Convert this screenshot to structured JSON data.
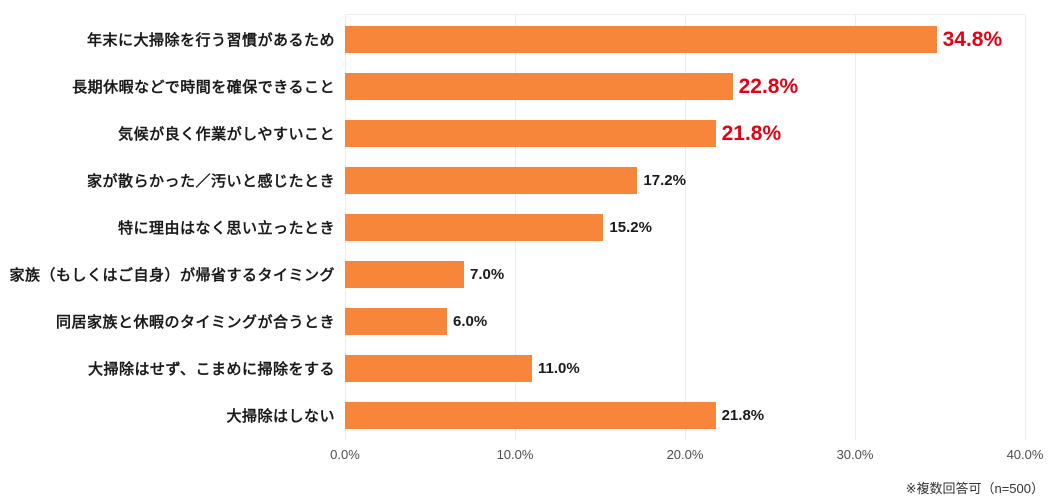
{
  "chart_data": {
    "type": "bar",
    "orientation": "horizontal",
    "title": "",
    "xlabel": "",
    "ylabel": "",
    "xlim": [
      0,
      40
    ],
    "grid": true,
    "categories": [
      "年末に大掃除を行う習慣があるため",
      "長期休暇などで時間を確保できること",
      "気候が良く作業がしやすいこと",
      "家が散らかった／汚いと感じたとき",
      "特に理由はなく思い立ったとき",
      "家族（もしくはご自身）が帰省するタイミング",
      "同居家族と休暇のタイミングが合うとき",
      "大掃除はせず、こまめに掃除をする",
      "大掃除はしない"
    ],
    "values": [
      34.8,
      22.8,
      21.8,
      17.2,
      15.2,
      7.0,
      6.0,
      11.0,
      21.8
    ],
    "value_labels": [
      "34.8%",
      "22.8%",
      "21.8%",
      "17.2%",
      "15.2%",
      "7.0%",
      "6.0%",
      "11.0%",
      "21.8%"
    ],
    "emphasized": [
      true,
      true,
      true,
      false,
      false,
      false,
      false,
      false,
      false
    ],
    "x_ticks": [
      {
        "value": 0,
        "label": "0.0%"
      },
      {
        "value": 10,
        "label": "10.0%"
      },
      {
        "value": 20,
        "label": "20.0%"
      },
      {
        "value": 30,
        "label": "30.0%"
      },
      {
        "value": 40,
        "label": "40.0%"
      }
    ],
    "colors": {
      "bar": "#f8863a",
      "emphasis_text": "#e60012",
      "label_text": "#1a1a1a",
      "tick_text": "#4d4d4d",
      "gridline": "#ededed"
    }
  },
  "footer": {
    "note": "※複数回答可（n=500）"
  }
}
